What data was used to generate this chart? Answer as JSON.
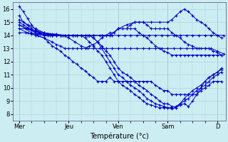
{
  "xlabel": "Température (°c)",
  "ylim": [
    7.5,
    16.5
  ],
  "yticks": [
    8,
    9,
    10,
    11,
    12,
    13,
    14,
    15,
    16
  ],
  "xtick_labels": [
    "Mer",
    "Jeu",
    "Ven",
    "Sam",
    "D"
  ],
  "xtick_positions": [
    0,
    24,
    48,
    72,
    96
  ],
  "bg_color": "#cceef2",
  "grid_color": "#aad8dc",
  "line_color": "#0000cc",
  "series": [
    {
      "x": [
        0,
        2,
        4,
        6,
        8,
        10,
        12,
        14,
        16,
        18,
        20,
        22,
        24,
        26,
        28,
        30,
        32,
        34,
        36,
        38,
        40,
        42,
        44,
        46,
        48,
        50,
        52,
        54,
        56,
        58,
        60,
        62,
        64,
        66,
        68,
        70,
        72,
        74,
        76,
        78,
        80,
        82,
        84,
        86,
        88,
        90,
        92,
        94,
        96,
        98
      ],
      "y": [
        16.2,
        15.8,
        15.3,
        14.8,
        14.4,
        14.2,
        14.1,
        14.1,
        14.0,
        14.0,
        14.0,
        14.0,
        14.0,
        14.0,
        14.0,
        14.0,
        14.0,
        14.0,
        13.8,
        13.5,
        13.2,
        12.8,
        12.5,
        12.0,
        11.5,
        11.2,
        11.0,
        10.8,
        10.5,
        10.2,
        10.0,
        9.8,
        9.5,
        9.3,
        9.0,
        8.8,
        8.8,
        8.6,
        8.5,
        8.7,
        8.8,
        8.6,
        9.0,
        9.5,
        10.0,
        10.5,
        10.8,
        11.0,
        11.2,
        11.5
      ]
    },
    {
      "x": [
        0,
        2,
        4,
        6,
        8,
        10,
        12,
        14,
        16,
        18,
        20,
        22,
        24,
        26,
        28,
        30,
        32,
        34,
        36,
        38,
        40,
        42,
        44,
        46,
        48,
        50,
        52,
        54,
        56,
        58,
        60,
        62,
        64,
        66,
        68,
        70,
        72,
        74,
        76,
        78,
        80,
        82,
        84,
        86,
        88,
        90,
        92,
        94,
        96,
        98
      ],
      "y": [
        15.5,
        15.0,
        14.8,
        14.5,
        14.3,
        14.2,
        14.1,
        14.1,
        14.0,
        14.0,
        14.0,
        14.0,
        14.0,
        14.0,
        14.0,
        14.0,
        14.0,
        14.0,
        13.8,
        13.5,
        13.0,
        12.5,
        12.0,
        11.5,
        11.0,
        10.8,
        10.5,
        10.2,
        10.0,
        9.8,
        9.5,
        9.2,
        9.0,
        8.8,
        8.7,
        8.6,
        8.5,
        8.4,
        8.5,
        8.8,
        9.2,
        9.5,
        9.8,
        10.0,
        10.2,
        10.5,
        10.8,
        11.0,
        11.2,
        11.4
      ]
    },
    {
      "x": [
        0,
        2,
        4,
        6,
        8,
        10,
        12,
        14,
        16,
        18,
        20,
        22,
        24,
        26,
        28,
        30,
        32,
        34,
        36,
        38,
        40,
        42,
        44,
        46,
        48,
        50,
        52,
        54,
        56,
        58,
        60,
        62,
        64,
        66,
        68,
        70,
        72,
        74,
        76,
        78,
        80,
        82,
        84,
        86,
        88,
        90,
        92,
        94,
        96,
        98
      ],
      "y": [
        15.0,
        14.8,
        14.6,
        14.4,
        14.2,
        14.1,
        14.1,
        14.0,
        14.0,
        14.0,
        14.0,
        14.0,
        14.0,
        14.0,
        14.0,
        14.0,
        13.8,
        13.5,
        13.2,
        12.8,
        12.5,
        12.0,
        11.5,
        11.0,
        10.5,
        10.2,
        10.0,
        9.8,
        9.5,
        9.3,
        9.0,
        8.8,
        8.7,
        8.6,
        8.5,
        8.5,
        8.5,
        8.5,
        8.6,
        8.8,
        9.0,
        9.2,
        9.5,
        9.8,
        10.0,
        10.2,
        10.5,
        10.8,
        11.0,
        11.2
      ]
    },
    {
      "x": [
        0,
        3,
        6,
        9,
        12,
        15,
        18,
        21,
        24,
        27,
        30,
        33,
        36,
        39,
        42,
        45,
        48,
        51,
        54,
        57,
        60,
        63,
        66,
        69,
        72,
        75,
        78,
        81,
        84,
        87,
        90,
        93,
        96,
        99
      ],
      "y": [
        14.5,
        14.5,
        14.4,
        14.3,
        14.2,
        14.1,
        14.1,
        14.0,
        14.0,
        14.0,
        14.0,
        14.0,
        14.0,
        14.0,
        14.0,
        14.0,
        14.0,
        14.0,
        14.0,
        14.0,
        14.0,
        14.0,
        14.0,
        14.0,
        14.0,
        14.0,
        14.0,
        14.0,
        14.0,
        14.0,
        14.0,
        14.0,
        14.0,
        14.0
      ]
    },
    {
      "x": [
        0,
        3,
        6,
        9,
        12,
        15,
        18,
        21,
        24,
        27,
        30,
        33,
        36,
        39,
        42,
        45,
        48,
        51,
        54,
        57,
        60,
        63,
        66,
        69,
        72,
        75,
        78,
        81,
        84,
        87,
        90,
        93,
        96,
        99
      ],
      "y": [
        14.2,
        14.2,
        14.1,
        14.1,
        14.0,
        14.0,
        14.0,
        14.0,
        13.8,
        13.5,
        13.2,
        13.0,
        13.0,
        13.0,
        13.0,
        13.0,
        13.0,
        13.0,
        13.0,
        13.0,
        13.0,
        13.0,
        13.0,
        13.0,
        13.0,
        13.0,
        13.0,
        13.0,
        13.0,
        13.0,
        13.0,
        13.0,
        12.8,
        12.6
      ]
    },
    {
      "x": [
        0,
        4,
        8,
        12,
        16,
        20,
        24,
        26,
        28,
        30,
        32,
        34,
        36,
        40,
        44,
        48,
        52,
        56,
        60,
        64,
        68,
        72,
        74,
        76,
        78,
        80,
        82,
        84,
        86,
        88,
        90,
        92,
        94,
        96,
        98
      ],
      "y": [
        15.2,
        14.8,
        14.5,
        14.2,
        14.1,
        14.0,
        14.0,
        14.0,
        14.0,
        14.0,
        14.0,
        14.0,
        14.0,
        14.0,
        14.0,
        14.5,
        14.8,
        15.0,
        15.0,
        15.0,
        15.0,
        15.0,
        15.2,
        15.5,
        15.8,
        16.0,
        15.8,
        15.5,
        15.2,
        15.0,
        14.8,
        14.5,
        14.2,
        14.0,
        13.8
      ]
    },
    {
      "x": [
        0,
        4,
        8,
        12,
        16,
        20,
        24,
        28,
        32,
        36,
        40,
        44,
        48,
        50,
        52,
        54,
        56,
        58,
        60,
        62,
        64,
        66,
        68,
        70,
        72,
        74,
        76,
        78,
        80,
        82,
        84,
        86,
        88,
        90,
        92,
        94,
        96,
        98
      ],
      "y": [
        14.8,
        14.5,
        14.2,
        14.0,
        14.0,
        14.0,
        14.0,
        14.0,
        14.0,
        14.0,
        14.0,
        14.0,
        14.5,
        14.5,
        14.5,
        14.8,
        15.0,
        15.0,
        15.0,
        14.8,
        14.5,
        14.5,
        14.5,
        14.5,
        14.5,
        14.2,
        14.0,
        13.8,
        13.5,
        13.3,
        13.2,
        13.0,
        13.0,
        13.0,
        13.0,
        12.8,
        12.7,
        12.5
      ]
    },
    {
      "x": [
        0,
        4,
        8,
        12,
        16,
        18,
        20,
        22,
        24,
        26,
        28,
        30,
        32,
        34,
        36,
        38,
        40,
        42,
        44,
        46,
        48,
        50,
        52,
        54,
        56,
        58,
        60,
        62,
        64,
        66,
        68,
        70,
        72,
        74,
        76,
        78,
        80,
        82,
        84,
        86,
        88,
        90,
        92,
        94,
        96,
        98
      ],
      "y": [
        14.5,
        14.2,
        14.0,
        13.8,
        13.5,
        13.3,
        13.2,
        13.0,
        13.0,
        13.0,
        13.0,
        13.0,
        13.0,
        13.2,
        13.3,
        13.5,
        13.8,
        14.0,
        14.2,
        14.2,
        14.5,
        14.5,
        14.5,
        14.5,
        14.5,
        14.2,
        14.0,
        13.8,
        13.5,
        13.2,
        13.0,
        12.8,
        12.7,
        12.5,
        12.5,
        12.5,
        12.5,
        12.5,
        12.5,
        12.5,
        12.5,
        12.5,
        12.5,
        12.5,
        12.5,
        12.5
      ]
    },
    {
      "x": [
        0,
        3,
        6,
        9,
        12,
        14,
        16,
        18,
        20,
        22,
        24,
        26,
        28,
        30,
        32,
        34,
        36,
        38,
        40,
        42,
        44,
        46,
        48,
        50,
        52,
        54,
        56,
        58,
        60,
        62,
        64,
        66,
        68,
        70,
        72,
        74,
        76,
        78,
        80,
        82,
        84,
        86,
        88,
        90,
        92,
        94,
        96,
        98
      ],
      "y": [
        14.8,
        14.5,
        14.2,
        14.0,
        13.8,
        13.5,
        13.2,
        13.0,
        12.8,
        12.5,
        12.3,
        12.0,
        11.8,
        11.5,
        11.3,
        11.0,
        10.8,
        10.5,
        10.5,
        10.5,
        10.8,
        10.5,
        10.5,
        10.5,
        10.5,
        10.5,
        10.5,
        10.5,
        10.5,
        10.5,
        10.5,
        10.2,
        10.0,
        9.8,
        9.8,
        9.5,
        9.5,
        9.5,
        9.5,
        9.5,
        9.5,
        9.5,
        9.8,
        10.0,
        10.2,
        10.5,
        10.5,
        10.5
      ]
    }
  ]
}
